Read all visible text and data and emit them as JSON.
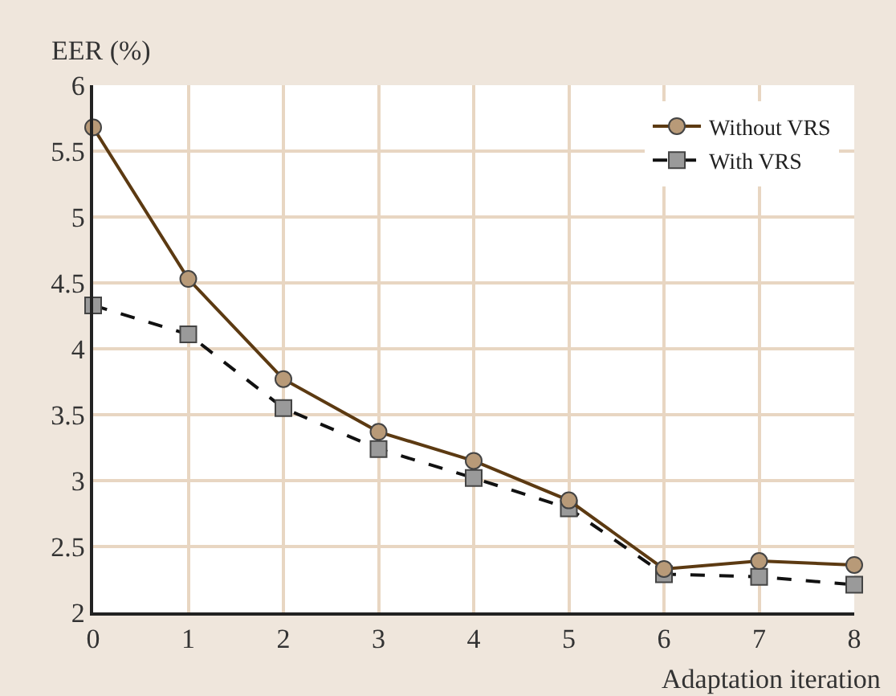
{
  "chart_data": {
    "type": "line",
    "xlabel": "Adaptation iteration",
    "ylabel": "EER (%)",
    "x": [
      0,
      1,
      2,
      3,
      4,
      5,
      6,
      7,
      8
    ],
    "series": [
      {
        "name": "Without VRS",
        "color": "#5c3a12",
        "marker": "circle",
        "line_style": "solid",
        "values": [
          5.68,
          4.53,
          3.77,
          3.37,
          3.15,
          2.85,
          2.33,
          2.39,
          2.36
        ]
      },
      {
        "name": "With VRS",
        "color": "#111111",
        "marker": "square",
        "line_style": "dashed",
        "values": [
          4.33,
          4.11,
          3.55,
          3.24,
          3.02,
          2.79,
          2.29,
          2.27,
          2.21
        ]
      }
    ],
    "xlim": [
      0,
      8
    ],
    "xticks": [
      0,
      1,
      2,
      3,
      4,
      5,
      6,
      7,
      8
    ],
    "ylim": [
      2,
      6
    ],
    "yticks": [
      2,
      2.5,
      3,
      3.5,
      4,
      4.5,
      5,
      5.5,
      6
    ],
    "grid": true,
    "legend": "top right"
  }
}
